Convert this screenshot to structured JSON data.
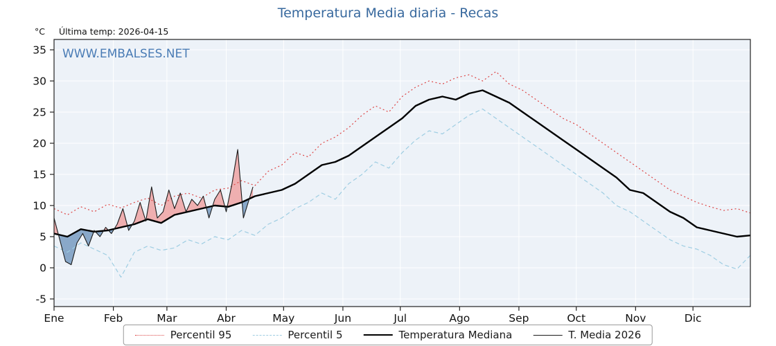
{
  "header": {
    "title": "Temperatura Media diaria - Recas",
    "unit_label": "°C",
    "last_temp_label": "Última temp: 2026-04-15",
    "watermark": "WWW.EMBALSES.NET"
  },
  "chart_data": {
    "type": "line",
    "title": "Temperatura Media diaria - Recas",
    "xlabel": "",
    "ylabel": "°C",
    "ylim": [
      -7,
      37
    ],
    "x_axis": {
      "tick_labels": [
        "Ene",
        "Feb",
        "Mar",
        "Abr",
        "May",
        "Jun",
        "Jul",
        "Ago",
        "Sep",
        "Oct",
        "Nov",
        "Dic"
      ],
      "tick_days": [
        1,
        32,
        60,
        91,
        121,
        152,
        182,
        213,
        244,
        274,
        305,
        335
      ],
      "range_days": [
        1,
        365
      ]
    },
    "y_axis": {
      "ticks": [
        -5,
        0,
        5,
        10,
        15,
        20,
        25,
        30,
        35
      ]
    },
    "plot_background": "#edf2f8",
    "grid_color": "#ffffff",
    "fills": {
      "above_color": "#ef9d9d",
      "below_color": "#6f95bd",
      "opacity": 0.8
    },
    "series": [
      {
        "name": "percentil-95",
        "label": "Percentil 95",
        "color": "#dd4444",
        "dash": "dotted",
        "width": 1.2,
        "days": [
          1,
          8,
          15,
          22,
          29,
          36,
          43,
          50,
          57,
          64,
          71,
          78,
          85,
          92,
          99,
          106,
          113,
          120,
          127,
          134,
          141,
          148,
          155,
          162,
          169,
          176,
          183,
          190,
          197,
          204,
          211,
          218,
          225,
          232,
          239,
          246,
          253,
          260,
          267,
          274,
          281,
          288,
          295,
          302,
          309,
          316,
          323,
          330,
          337,
          344,
          351,
          358,
          365
        ],
        "values": [
          9.5,
          8.5,
          9.8,
          9.0,
          10.2,
          9.6,
          10.5,
          11.2,
          10.0,
          11.5,
          12.0,
          11.2,
          12.5,
          12.8,
          14.0,
          13.2,
          15.5,
          16.5,
          18.5,
          17.8,
          20.0,
          21.0,
          22.5,
          24.5,
          26.0,
          25.0,
          27.5,
          29.0,
          30.0,
          29.5,
          30.5,
          31.0,
          30.0,
          31.5,
          29.5,
          28.5,
          27.0,
          25.5,
          24.0,
          23.0,
          21.5,
          20.0,
          18.5,
          17.0,
          15.5,
          14.0,
          12.5,
          11.5,
          10.5,
          9.8,
          9.2,
          9.5,
          8.8
        ]
      },
      {
        "name": "percentil-5",
        "label": "Percentil 5",
        "color": "#9ecde2",
        "dash": "dashed",
        "width": 1.2,
        "days": [
          1,
          8,
          15,
          22,
          29,
          36,
          43,
          50,
          57,
          64,
          71,
          78,
          85,
          92,
          99,
          106,
          113,
          120,
          127,
          134,
          141,
          148,
          155,
          162,
          169,
          176,
          183,
          190,
          197,
          204,
          211,
          218,
          225,
          232,
          239,
          246,
          253,
          260,
          267,
          274,
          281,
          288,
          295,
          302,
          309,
          316,
          323,
          330,
          337,
          344,
          351,
          358,
          365
        ],
        "values": [
          3.5,
          2.5,
          4.0,
          3.0,
          2.0,
          -1.5,
          2.5,
          3.5,
          2.8,
          3.2,
          4.5,
          3.8,
          5.0,
          4.5,
          6.0,
          5.2,
          7.0,
          8.0,
          9.5,
          10.5,
          12.0,
          11.0,
          13.5,
          15.0,
          17.0,
          16.0,
          18.5,
          20.5,
          22.0,
          21.5,
          23.0,
          24.5,
          25.5,
          24.0,
          22.5,
          21.0,
          19.5,
          18.0,
          16.5,
          15.0,
          13.5,
          12.0,
          10.0,
          9.0,
          7.5,
          6.0,
          4.5,
          3.5,
          3.0,
          2.0,
          0.5,
          -0.2,
          2.0
        ]
      },
      {
        "name": "temperatura-mediana",
        "label": "Temperatura Mediana",
        "color": "#000000",
        "dash": "solid",
        "width": 2.4,
        "days": [
          1,
          8,
          15,
          22,
          29,
          36,
          43,
          50,
          57,
          64,
          71,
          78,
          85,
          92,
          99,
          106,
          113,
          120,
          127,
          134,
          141,
          148,
          155,
          162,
          169,
          176,
          183,
          190,
          197,
          204,
          211,
          218,
          225,
          232,
          239,
          246,
          253,
          260,
          267,
          274,
          281,
          288,
          295,
          302,
          309,
          316,
          323,
          330,
          337,
          344,
          351,
          358,
          365
        ],
        "values": [
          5.5,
          5.0,
          6.2,
          5.8,
          6.0,
          6.5,
          7.0,
          7.8,
          7.2,
          8.5,
          9.0,
          9.5,
          10.0,
          9.8,
          10.5,
          11.5,
          12.0,
          12.5,
          13.5,
          15.0,
          16.5,
          17.0,
          18.0,
          19.5,
          21.0,
          22.5,
          24.0,
          26.0,
          27.0,
          27.5,
          27.0,
          28.0,
          28.5,
          27.5,
          26.5,
          25.0,
          23.5,
          22.0,
          20.5,
          19.0,
          17.5,
          16.0,
          14.5,
          12.5,
          12.0,
          10.5,
          9.0,
          8.0,
          6.5,
          6.0,
          5.5,
          5.0,
          5.2
        ]
      },
      {
        "name": "t-media-2026",
        "label": "T. Media 2026",
        "color": "#1a1a1a",
        "dash": "solid",
        "width": 1.1,
        "days": [
          1,
          4,
          7,
          10,
          13,
          16,
          19,
          22,
          25,
          28,
          31,
          34,
          37,
          40,
          43,
          46,
          49,
          52,
          55,
          58,
          61,
          64,
          67,
          70,
          73,
          76,
          79,
          82,
          85,
          88,
          91,
          94,
          97,
          100,
          103,
          105
        ],
        "values": [
          8.0,
          4.5,
          1.0,
          0.5,
          4.0,
          5.5,
          3.5,
          6.0,
          5.0,
          6.5,
          5.5,
          7.0,
          9.5,
          6.0,
          7.5,
          10.5,
          7.5,
          13.0,
          8.0,
          9.0,
          12.5,
          9.5,
          12.0,
          9.0,
          11.0,
          10.0,
          11.5,
          8.0,
          11.0,
          12.5,
          9.0,
          13.5,
          19.0,
          8.0,
          11.0,
          13.0
        ]
      }
    ]
  },
  "legend": {
    "items": [
      "Percentil 95",
      "Percentil 5",
      "Temperatura Mediana",
      "T. Media 2026"
    ]
  }
}
